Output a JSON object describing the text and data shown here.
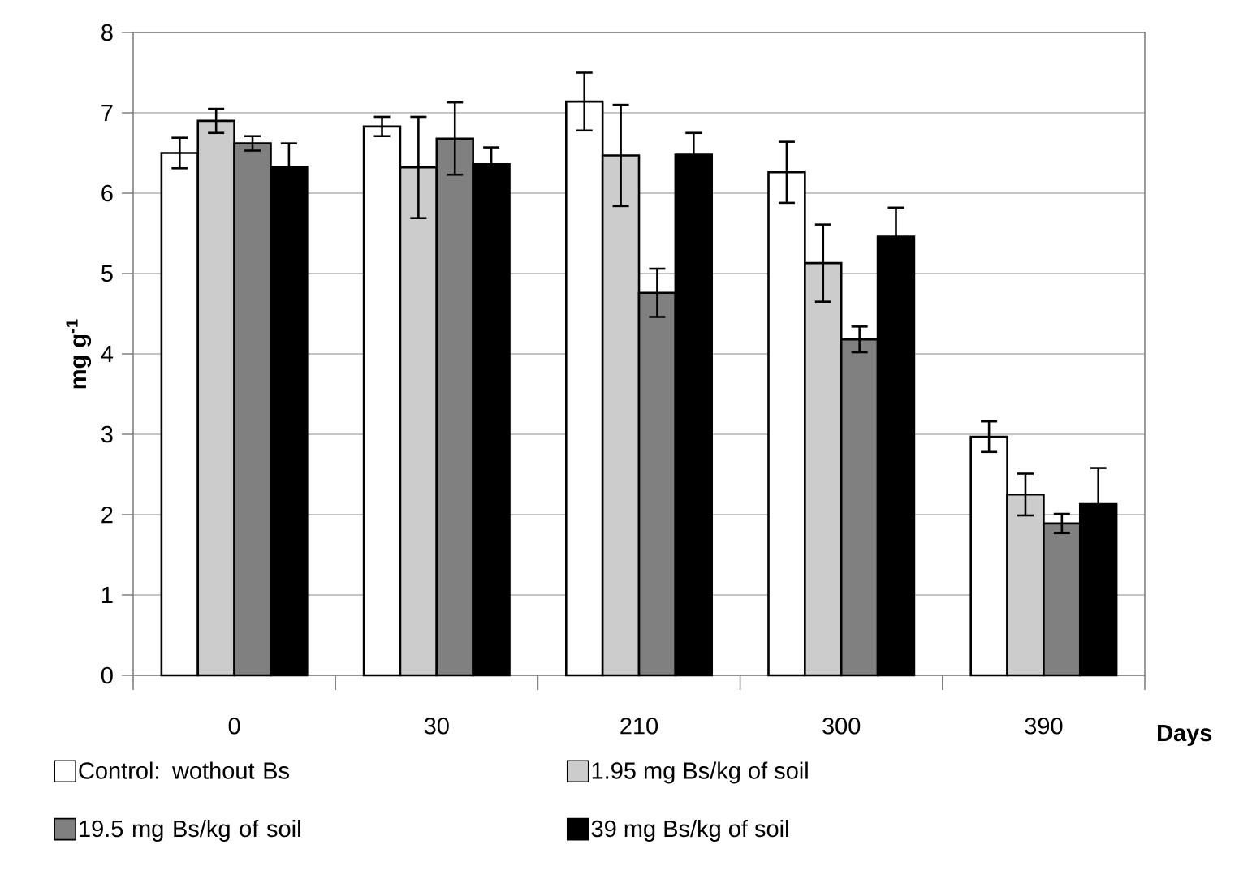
{
  "chart_data": {
    "type": "bar",
    "xlabel": "Days",
    "ylabel": "mg g$^{-1}$",
    "categories": [
      "0",
      "30",
      "210",
      "300",
      "390"
    ],
    "series": [
      {
        "name": "Control: wothout Bs",
        "color": "#ffffff",
        "values": [
          6.5,
          6.83,
          7.14,
          6.26,
          2.97
        ],
        "errors": [
          0.19,
          0.12,
          0.36,
          0.38,
          0.19
        ]
      },
      {
        "name": "1.95 mg Bs/kg of soil",
        "color": "#cccccc",
        "values": [
          6.9,
          6.32,
          6.47,
          5.13,
          2.25
        ],
        "errors": [
          0.15,
          0.63,
          0.63,
          0.48,
          0.26
        ]
      },
      {
        "name": "19.5 mg Bs/kg of soil",
        "color": "#808080",
        "values": [
          6.62,
          6.68,
          4.76,
          4.18,
          1.89
        ],
        "errors": [
          0.09,
          0.45,
          0.3,
          0.16,
          0.12
        ]
      },
      {
        "name": "39 mg Bs/kg of soil",
        "color": "#000000",
        "values": [
          6.33,
          6.36,
          6.48,
          5.46,
          2.13
        ],
        "errors": [
          0.29,
          0.21,
          0.27,
          0.36,
          0.45
        ]
      }
    ],
    "ylim": [
      0,
      8
    ],
    "yticks": [
      0,
      1,
      2,
      3,
      4,
      5,
      6,
      7,
      8
    ],
    "grid": "y",
    "legend": "bottom"
  }
}
